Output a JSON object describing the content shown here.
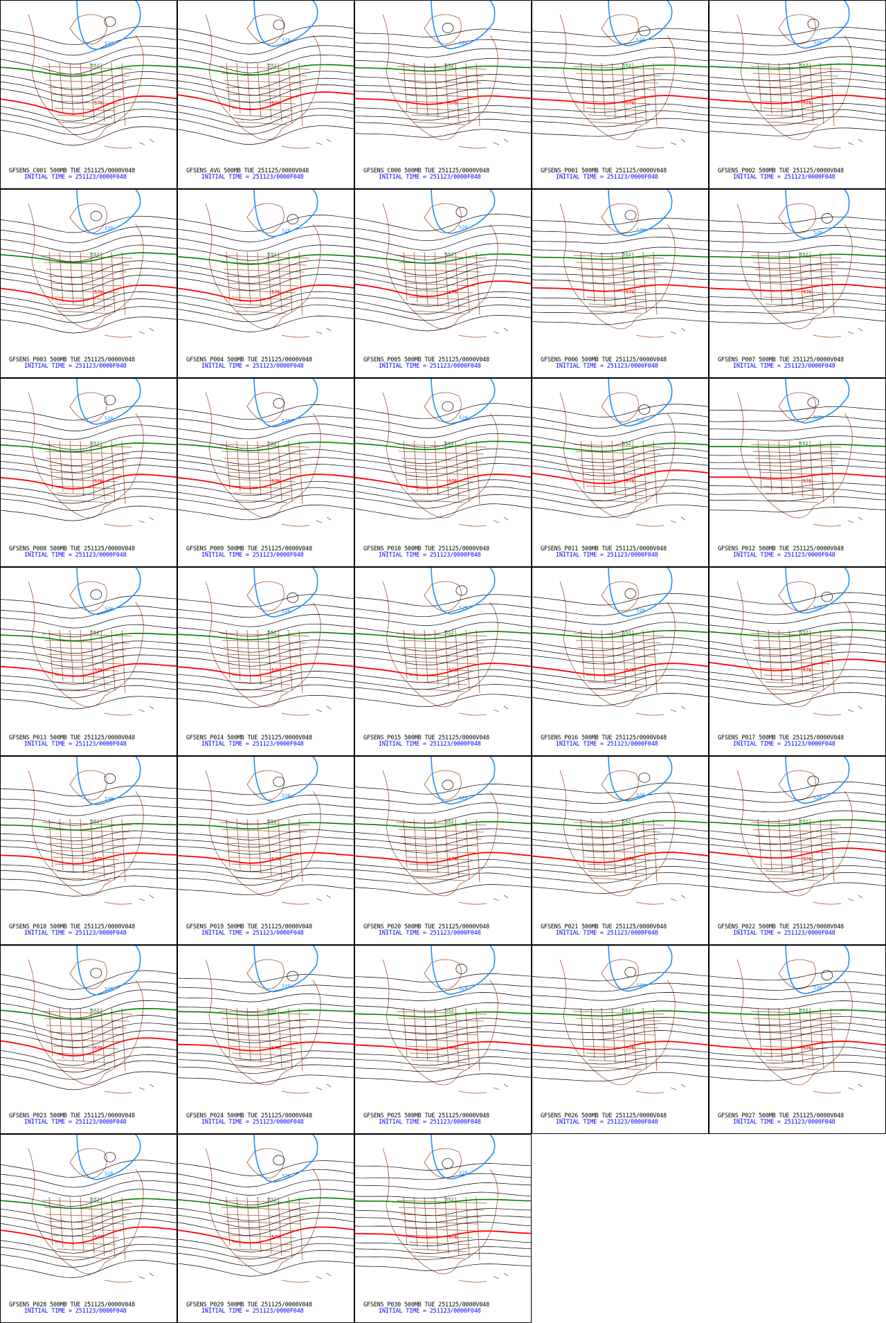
{
  "colors": {
    "height_lines": "#000000",
    "contour_528": "#1e90ff",
    "contour_552": "#008000",
    "contour_576": "#ff0000",
    "map_borders": "#a0522d",
    "title_line1": "#000000",
    "title_line2": "#0000ff"
  },
  "contour_labels": {
    "low": "528",
    "mid": "552",
    "high": "576"
  },
  "panels": [
    {
      "title": "GFSENS_C001 500MB TUE 251125/0000V048",
      "init": "INITIAL TIME = 251123/0000F048"
    },
    {
      "title": "GFSENS_AVG 500MB TUE 251125/0000V048",
      "init": "INITIAL TIME = 251123/0000F048"
    },
    {
      "title": "GFSENS_C000 500MB TUE 251125/0000V048",
      "init": "INITIAL TIME = 251123/0000F048"
    },
    {
      "title": "GFSENS_P001 500MB TUE 251125/0000V048",
      "init": "INITIAL TIME = 251123/0000F048"
    },
    {
      "title": "GFSENS_P002 500MB TUE 251125/0000V048",
      "init": "INITIAL TIME = 251123/0000F048"
    },
    {
      "title": "GFSENS_P003 500MB TUE 251125/0000V048",
      "init": "INITIAL TIME = 251123/0000F048"
    },
    {
      "title": "GFSENS_P004 500MB TUE 251125/0000V048",
      "init": "INITIAL TIME = 251123/0000F048"
    },
    {
      "title": "GFSENS_P005 500MB TUE 251125/0000V048",
      "init": "INITIAL TIME = 251123/0000F048"
    },
    {
      "title": "GFSENS_P006 500MB TUE 251125/0000V048",
      "init": "INITIAL TIME = 251123/0000F048"
    },
    {
      "title": "GFSENS_P007 500MB TUE 251125/0000V048",
      "init": "INITIAL TIME = 251123/0000F048"
    },
    {
      "title": "GFSENS_P008 500MB TUE 251125/0000V048",
      "init": "INITIAL TIME = 251123/0000F048"
    },
    {
      "title": "GFSENS_P009 500MB TUE 251125/0000V048",
      "init": "INITIAL TIME = 251123/0000F048"
    },
    {
      "title": "GFSENS_P010 500MB TUE 251125/0000V048",
      "init": "INITIAL TIME = 251123/0000F048"
    },
    {
      "title": "GFSENS_P011 500MB TUE 251125/0000V048",
      "init": "INITIAL TIME = 251123/0000F048"
    },
    {
      "title": "GFSENS_P012 500MB TUE 251125/0000V048",
      "init": "INITIAL TIME = 251123/0000F048"
    },
    {
      "title": "GFSENS_P013 500MB TUE 251125/0000V048",
      "init": "INITIAL TIME = 251123/0000F048"
    },
    {
      "title": "GFSENS_P014 500MB TUE 251125/0000V048",
      "init": "INITIAL TIME = 251123/0000F048"
    },
    {
      "title": "GFSENS_P015 500MB TUE 251125/0000V048",
      "init": "INITIAL TIME = 251123/0000F048"
    },
    {
      "title": "GFSENS_P016 500MB TUE 251125/0000V048",
      "init": "INITIAL TIME = 251123/0000F048"
    },
    {
      "title": "GFSENS_P017 500MB TUE 251125/0000V048",
      "init": "INITIAL TIME = 251123/0000F048"
    },
    {
      "title": "GFSENS_P018 500MB TUE 251125/0000V048",
      "init": "INITIAL TIME = 251123/0000F048"
    },
    {
      "title": "GFSENS_P019 500MB TUE 251125/0000V048",
      "init": "INITIAL TIME = 251123/0000F048"
    },
    {
      "title": "GFSENS_P020 500MB TUE 251125/0000V048",
      "init": "INITIAL TIME = 251123/0000F048"
    },
    {
      "title": "GFSENS_P021 500MB TUE 251125/0000V048",
      "init": "INITIAL TIME = 251123/0000F048"
    },
    {
      "title": "GFSENS_P022 500MB TUE 251125/0000V048",
      "init": "INITIAL TIME = 251123/0000F048"
    },
    {
      "title": "GFSENS_P023 500MB TUE 251125/0000V048",
      "init": "INITIAL TIME = 251123/0000F048"
    },
    {
      "title": "GFSENS_P024 500MB TUE 251125/0000V048",
      "init": "INITIAL TIME = 251123/0000F048"
    },
    {
      "title": "GFSENS_P025 500MB TUE 251125/0000V048",
      "init": "INITIAL TIME = 251123/0000F048"
    },
    {
      "title": "GFSENS_P026 500MB TUE 251125/0000V048",
      "init": "INITIAL TIME = 251123/0000F048"
    },
    {
      "title": "GFSENS_P027 500MB TUE 251125/0000V048",
      "init": "INITIAL TIME = 251123/0000F048"
    },
    {
      "title": "GFSENS_P028 500MB TUE 251125/0000V048",
      "init": "INITIAL TIME = 251123/0000F048"
    },
    {
      "title": "GFSENS_P029 500MB TUE 251125/0000V048",
      "init": "INITIAL TIME = 251123/0000F048"
    },
    {
      "title": "GFSENS_P030 500MB TUE 251125/0000V048",
      "init": "INITIAL TIME = 251123/0000F048"
    }
  ]
}
